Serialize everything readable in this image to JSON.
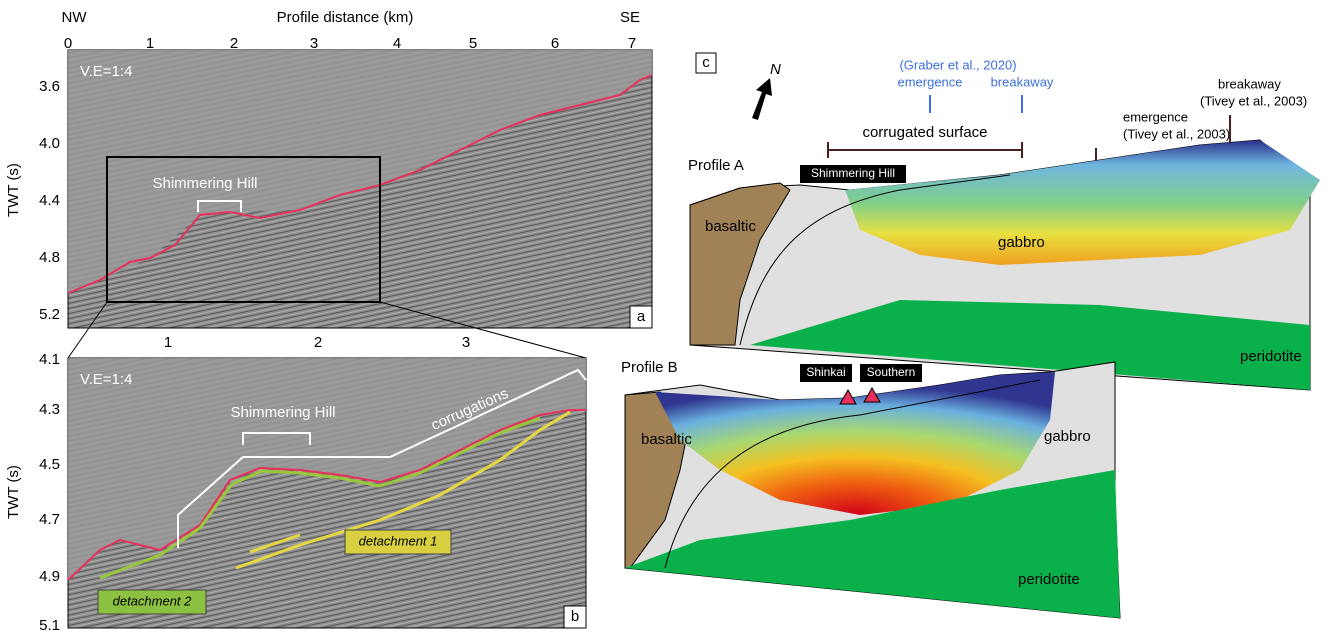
{
  "panel_a": {
    "label": "a",
    "nw": "NW",
    "se": "SE",
    "x_title": "Profile distance (km)",
    "y_title": "TWT (s)",
    "ve": "V.E=1:4",
    "x_ticks": [
      "0",
      "1",
      "2",
      "3",
      "4",
      "5",
      "6",
      "7"
    ],
    "y_ticks": [
      "3.6",
      "4.0",
      "4.4",
      "4.8",
      "5.2"
    ],
    "feature": "Shimmering Hill"
  },
  "panel_b": {
    "label": "b",
    "y_title": "TWT (s)",
    "ve": "V.E=1:4",
    "x_ticks": [
      "1",
      "2",
      "3"
    ],
    "y_ticks": [
      "4.1",
      "4.3",
      "4.5",
      "4.7",
      "4.9",
      "5.1"
    ],
    "feature": "Shimmering Hill",
    "corrugations": "corrugations",
    "detachment_1": "detachment 1",
    "detachment_2": "detachment 2"
  },
  "panel_c": {
    "label": "c",
    "north": "N",
    "graber_ref": "(Graber et al., 2020)",
    "graber_emergence": "emergence",
    "graber_breakaway": "breakaway",
    "corrugated": "corrugated surface",
    "tivey_emergence": "emergence",
    "tivey_emergence_ref": "(Tivey et al., 2003)",
    "tivey_breakaway": "breakaway",
    "tivey_breakaway_ref": "(Tivey et al., 2003)",
    "profile_a": {
      "title": "Profile A",
      "site": "Shimmering Hill",
      "basaltic": "basaltic",
      "gabbro": "gabbro",
      "peridotite": "peridotite"
    },
    "profile_b": {
      "title": "Profile B",
      "site_1": "Shinkai",
      "site_2": "Southern",
      "basaltic": "basaltic",
      "gabbro": "gabbro",
      "peridotite": "peridotite"
    }
  }
}
